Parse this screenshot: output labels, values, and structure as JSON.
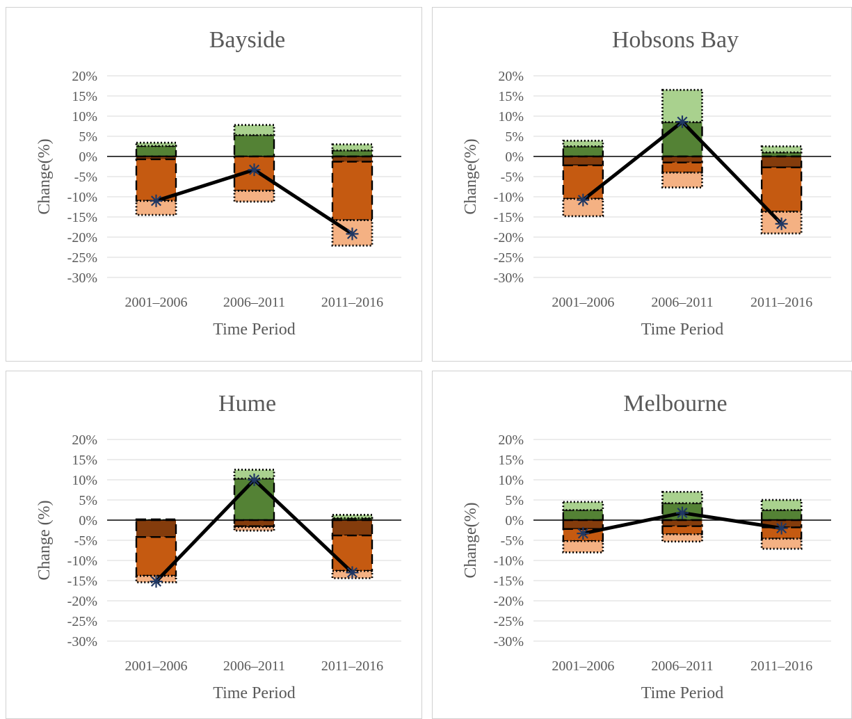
{
  "chart_data": [
    {
      "type": "bar",
      "title": "Bayside",
      "xlabel": "Time Period",
      "ylabel": "Change(%)",
      "ylim": [
        -30,
        20
      ],
      "yticks": [
        "20%",
        "15%",
        "10%",
        "5%",
        "0%",
        "-5%",
        "-10%",
        "-15%",
        "-20%",
        "-25%",
        "-30%"
      ],
      "categories": [
        "2001‒2006",
        "2006‒2011",
        "2011‒2016"
      ],
      "series": [
        {
          "values": [
            2.6,
            5.3,
            1.5
          ]
        },
        {
          "values": [
            0.8,
            2.5,
            1.5
          ]
        },
        {
          "values": [
            -0.7,
            0,
            -1.3
          ]
        },
        {
          "values": [
            -10.3,
            -8.5,
            -14.5
          ]
        },
        {
          "values": [
            -3.5,
            -2.7,
            -6.3
          ]
        },
        {
          "type": "line",
          "values": [
            -11,
            -3.3,
            -19.2
          ]
        }
      ]
    },
    {
      "type": "bar",
      "title": "Hobsons Bay",
      "xlabel": "Time Period",
      "ylabel": "Change(%)",
      "ylim": [
        -30,
        20
      ],
      "yticks": [
        "20%",
        "15%",
        "10%",
        "5%",
        "0%",
        "-5%",
        "-10%",
        "-15%",
        "-20%",
        "-25%",
        "-30%"
      ],
      "categories": [
        "2001‒2006",
        "2006‒2011",
        "2011‒2016"
      ],
      "series": [
        {
          "values": [
            2.5,
            8.5,
            1.0
          ]
        },
        {
          "values": [
            1.4,
            8.0,
            1.5
          ]
        },
        {
          "values": [
            -2.2,
            -1.5,
            -2.7
          ]
        },
        {
          "values": [
            -8.3,
            -2.5,
            -11.0
          ]
        },
        {
          "values": [
            -4.3,
            -3.7,
            -5.4
          ]
        },
        {
          "type": "line",
          "values": [
            -10.8,
            8.6,
            -16.7
          ]
        }
      ]
    },
    {
      "type": "bar",
      "title": "Hume",
      "xlabel": "Time Period",
      "ylabel": "Change (%)",
      "ylim": [
        -30,
        20
      ],
      "yticks": [
        "20%",
        "15%",
        "10%",
        "5%",
        "0%",
        "-5%",
        "-10%",
        "-15%",
        "-20%",
        "-25%",
        "-30%"
      ],
      "categories": [
        "2001‒2006",
        "2006‒2011",
        "2011‒2016"
      ],
      "series": [
        {
          "values": [
            0.2,
            10.3,
            0.5
          ]
        },
        {
          "values": [
            0,
            2.2,
            0.8
          ]
        },
        {
          "values": [
            -4.2,
            -1.5,
            -3.8
          ]
        },
        {
          "values": [
            -9.6,
            -0.2,
            -8.8
          ]
        },
        {
          "values": [
            -1.6,
            -0.9,
            -1.8
          ]
        },
        {
          "type": "line",
          "values": [
            -15.2,
            10,
            -13
          ]
        }
      ]
    },
    {
      "type": "bar",
      "title": "Melbourne",
      "xlabel": "Time Period",
      "ylabel": "Change(%)",
      "ylim": [
        -30,
        20
      ],
      "yticks": [
        "20%",
        "15%",
        "10%",
        "5%",
        "0%",
        "-5%",
        "-10%",
        "-15%",
        "-20%",
        "-25%",
        "-30%"
      ],
      "categories": [
        "2001‒2006",
        "2006‒2011",
        "2011‒2016"
      ],
      "series": [
        {
          "values": [
            2.5,
            4.2,
            2.5
          ]
        },
        {
          "values": [
            2.0,
            2.8,
            2.5
          ]
        },
        {
          "values": [
            -2.2,
            -1.5,
            -1.8
          ]
        },
        {
          "values": [
            -3.0,
            -2.0,
            -2.8
          ]
        },
        {
          "values": [
            -2.8,
            -1.8,
            -2.5
          ]
        },
        {
          "type": "line",
          "values": [
            -3.3,
            1.8,
            -2.0
          ]
        }
      ]
    }
  ],
  "colors": {
    "series": [
      "#548235",
      "#a9d18e",
      "#843c0c",
      "#c55a11",
      "#f4b183"
    ],
    "line": "#000000",
    "marker": "#203864",
    "grid": "#d9d9d9",
    "axis": "#000000",
    "text": "#595959",
    "panel_border": "#d0d0d0"
  }
}
